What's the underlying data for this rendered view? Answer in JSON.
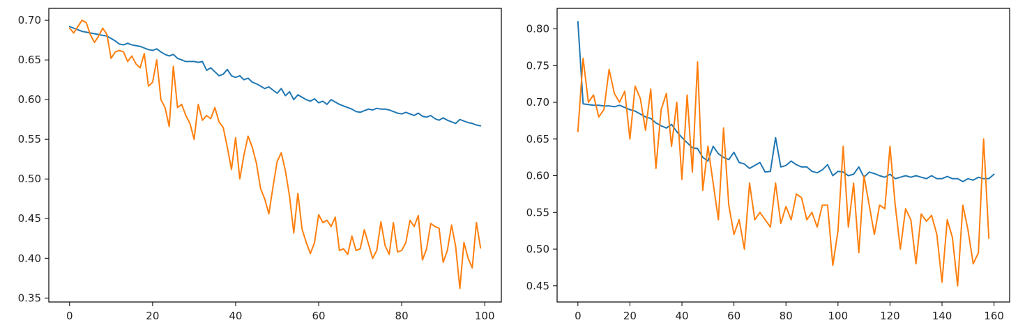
{
  "chart_data": [
    {
      "type": "line",
      "title": "",
      "xlabel": "",
      "ylabel": "",
      "xlim": [
        -5,
        104
      ],
      "ylim": [
        0.345,
        0.715
      ],
      "x_ticks": [
        0,
        20,
        40,
        60,
        80,
        100
      ],
      "y_ticks": [
        0.35,
        0.4,
        0.45,
        0.5,
        0.55,
        0.6,
        0.65,
        0.7
      ],
      "x_tick_labels": [
        "0",
        "20",
        "40",
        "60",
        "80",
        "100"
      ],
      "y_tick_labels": [
        "0.35",
        "0.40",
        "0.45",
        "0.50",
        "0.55",
        "0.60",
        "0.65",
        "0.70"
      ],
      "grid": false,
      "series": [
        {
          "color": "#1f77b4",
          "x_start": 0,
          "x_step": 1,
          "values": [
            0.692,
            0.69,
            0.688,
            0.686,
            0.685,
            0.684,
            0.683,
            0.682,
            0.681,
            0.68,
            0.677,
            0.674,
            0.67,
            0.669,
            0.671,
            0.669,
            0.668,
            0.667,
            0.665,
            0.663,
            0.662,
            0.664,
            0.66,
            0.657,
            0.655,
            0.657,
            0.652,
            0.65,
            0.648,
            0.648,
            0.648,
            0.647,
            0.648,
            0.637,
            0.64,
            0.635,
            0.63,
            0.632,
            0.638,
            0.63,
            0.628,
            0.63,
            0.625,
            0.627,
            0.622,
            0.62,
            0.617,
            0.614,
            0.616,
            0.612,
            0.608,
            0.614,
            0.605,
            0.61,
            0.6,
            0.606,
            0.603,
            0.6,
            0.598,
            0.601,
            0.596,
            0.598,
            0.594,
            0.6,
            0.597,
            0.594,
            0.592,
            0.59,
            0.588,
            0.585,
            0.584,
            0.586,
            0.588,
            0.587,
            0.589,
            0.588,
            0.588,
            0.587,
            0.585,
            0.583,
            0.582,
            0.584,
            0.582,
            0.58,
            0.583,
            0.579,
            0.578,
            0.58,
            0.576,
            0.574,
            0.577,
            0.574,
            0.572,
            0.57,
            0.575,
            0.573,
            0.571,
            0.57,
            0.568,
            0.567
          ]
        },
        {
          "color": "#ff7f0e",
          "x_start": 0,
          "x_step": 1,
          "values": [
            0.69,
            0.684,
            0.692,
            0.7,
            0.697,
            0.682,
            0.672,
            0.68,
            0.69,
            0.682,
            0.652,
            0.66,
            0.662,
            0.66,
            0.648,
            0.655,
            0.645,
            0.64,
            0.658,
            0.617,
            0.622,
            0.65,
            0.6,
            0.59,
            0.566,
            0.642,
            0.59,
            0.594,
            0.58,
            0.57,
            0.55,
            0.594,
            0.574,
            0.58,
            0.576,
            0.59,
            0.572,
            0.565,
            0.54,
            0.512,
            0.552,
            0.5,
            0.53,
            0.554,
            0.54,
            0.52,
            0.488,
            0.475,
            0.456,
            0.49,
            0.522,
            0.533,
            0.51,
            0.478,
            0.432,
            0.482,
            0.437,
            0.42,
            0.406,
            0.42,
            0.455,
            0.445,
            0.448,
            0.44,
            0.452,
            0.41,
            0.412,
            0.405,
            0.428,
            0.41,
            0.412,
            0.436,
            0.418,
            0.4,
            0.41,
            0.446,
            0.416,
            0.405,
            0.445,
            0.408,
            0.41,
            0.42,
            0.448,
            0.44,
            0.454,
            0.398,
            0.412,
            0.444,
            0.44,
            0.438,
            0.395,
            0.41,
            0.442,
            0.415,
            0.362,
            0.42,
            0.4,
            0.388,
            0.445,
            0.413
          ]
        }
      ]
    },
    {
      "type": "line",
      "title": "",
      "xlabel": "",
      "ylabel": "",
      "xlim": [
        -8,
        166
      ],
      "ylim": [
        0.428,
        0.828
      ],
      "x_ticks": [
        0,
        20,
        40,
        60,
        80,
        100,
        120,
        140,
        160
      ],
      "y_ticks": [
        0.45,
        0.5,
        0.55,
        0.6,
        0.65,
        0.7,
        0.75,
        0.8
      ],
      "x_tick_labels": [
        "0",
        "20",
        "40",
        "60",
        "80",
        "100",
        "120",
        "140",
        "160"
      ],
      "y_tick_labels": [
        "0.45",
        "0.50",
        "0.55",
        "0.60",
        "0.65",
        "0.70",
        "0.75",
        "0.80"
      ],
      "grid": false,
      "series": [
        {
          "color": "#1f77b4",
          "x_start": 0,
          "x_step": 2,
          "values": [
            0.81,
            0.698,
            0.697,
            0.696,
            0.696,
            0.695,
            0.695,
            0.694,
            0.696,
            0.693,
            0.69,
            0.688,
            0.684,
            0.68,
            0.678,
            0.672,
            0.668,
            0.665,
            0.67,
            0.66,
            0.652,
            0.645,
            0.638,
            0.637,
            0.625,
            0.62,
            0.64,
            0.63,
            0.625,
            0.622,
            0.632,
            0.618,
            0.616,
            0.61,
            0.614,
            0.618,
            0.605,
            0.606,
            0.652,
            0.612,
            0.614,
            0.62,
            0.615,
            0.612,
            0.612,
            0.606,
            0.604,
            0.608,
            0.615,
            0.6,
            0.606,
            0.605,
            0.6,
            0.602,
            0.612,
            0.598,
            0.605,
            0.603,
            0.6,
            0.598,
            0.602,
            0.596,
            0.598,
            0.6,
            0.598,
            0.6,
            0.598,
            0.596,
            0.6,
            0.596,
            0.596,
            0.599,
            0.596,
            0.596,
            0.592,
            0.596,
            0.594,
            0.598,
            0.596,
            0.596,
            0.602
          ]
        },
        {
          "color": "#ff7f0e",
          "x_start": 0,
          "x_step": 2,
          "values": [
            0.66,
            0.76,
            0.7,
            0.71,
            0.68,
            0.69,
            0.745,
            0.712,
            0.7,
            0.715,
            0.65,
            0.722,
            0.705,
            0.662,
            0.718,
            0.61,
            0.69,
            0.712,
            0.64,
            0.7,
            0.595,
            0.71,
            0.605,
            0.755,
            0.58,
            0.64,
            0.59,
            0.54,
            0.665,
            0.56,
            0.52,
            0.54,
            0.5,
            0.59,
            0.54,
            0.55,
            0.54,
            0.53,
            0.59,
            0.535,
            0.558,
            0.54,
            0.575,
            0.57,
            0.54,
            0.55,
            0.53,
            0.56,
            0.56,
            0.478,
            0.525,
            0.64,
            0.53,
            0.59,
            0.495,
            0.6,
            0.56,
            0.52,
            0.56,
            0.555,
            0.64,
            0.56,
            0.5,
            0.555,
            0.54,
            0.48,
            0.548,
            0.538,
            0.546,
            0.52,
            0.455,
            0.54,
            0.516,
            0.45,
            0.56,
            0.526,
            0.48,
            0.495,
            0.65,
            0.515
          ]
        }
      ]
    }
  ]
}
